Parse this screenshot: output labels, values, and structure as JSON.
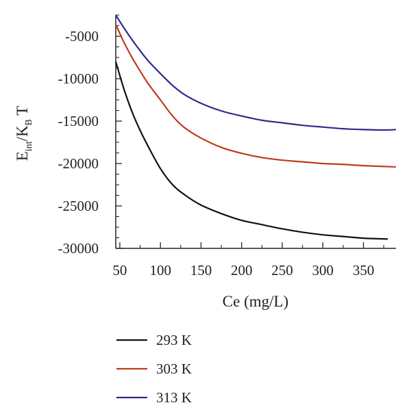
{
  "chart_data": {
    "type": "line",
    "title": "",
    "xlabel": "Ce (mg/L)",
    "ylabel": {
      "main": "E",
      "sub1": "int",
      "mid": "/K",
      "sub2": "B",
      "tail": " T"
    },
    "xlim": [
      45,
      390
    ],
    "ylim": [
      -30000,
      -2500
    ],
    "xticks": [
      50,
      100,
      150,
      200,
      250,
      300,
      350
    ],
    "yticks": [
      -5000,
      -10000,
      -15000,
      -20000,
      -25000,
      -30000
    ],
    "xtick_labels": [
      "50",
      "100",
      "150",
      "200",
      "250",
      "300",
      "350"
    ],
    "ytick_labels": [
      "-5000",
      "-10000",
      "-15000",
      "-20000",
      "-25000",
      "-30000"
    ],
    "legend_position": "below-plot",
    "grid": false,
    "series": [
      {
        "name": "293 K",
        "color": "#111111",
        "x": [
          45,
          55,
          65,
          75,
          85,
          100,
          115,
          130,
          150,
          175,
          200,
          225,
          250,
          275,
          300,
          325,
          350,
          380
        ],
        "y": [
          -8000,
          -11200,
          -13900,
          -16100,
          -18000,
          -20600,
          -22500,
          -23700,
          -24900,
          -25900,
          -26700,
          -27200,
          -27700,
          -28100,
          -28400,
          -28600,
          -28800,
          -28900
        ]
      },
      {
        "name": "303 K",
        "color": "#c0391b",
        "x": [
          45,
          55,
          65,
          75,
          85,
          100,
          115,
          130,
          150,
          175,
          200,
          225,
          250,
          275,
          300,
          325,
          350,
          390
        ],
        "y": [
          -3600,
          -5700,
          -7500,
          -9100,
          -10600,
          -12500,
          -14400,
          -15800,
          -17000,
          -18100,
          -18800,
          -19300,
          -19600,
          -19800,
          -20000,
          -20100,
          -20250,
          -20400
        ]
      },
      {
        "name": "313 K",
        "color": "#2e2a8c",
        "x": [
          45,
          55,
          65,
          75,
          85,
          100,
          115,
          130,
          150,
          175,
          200,
          225,
          250,
          275,
          300,
          325,
          350,
          375,
          390
        ],
        "y": [
          -2500,
          -4000,
          -5400,
          -6700,
          -7900,
          -9400,
          -10800,
          -11900,
          -12900,
          -13800,
          -14400,
          -14900,
          -15200,
          -15500,
          -15700,
          -15900,
          -16000,
          -16050,
          -16000
        ]
      }
    ]
  }
}
